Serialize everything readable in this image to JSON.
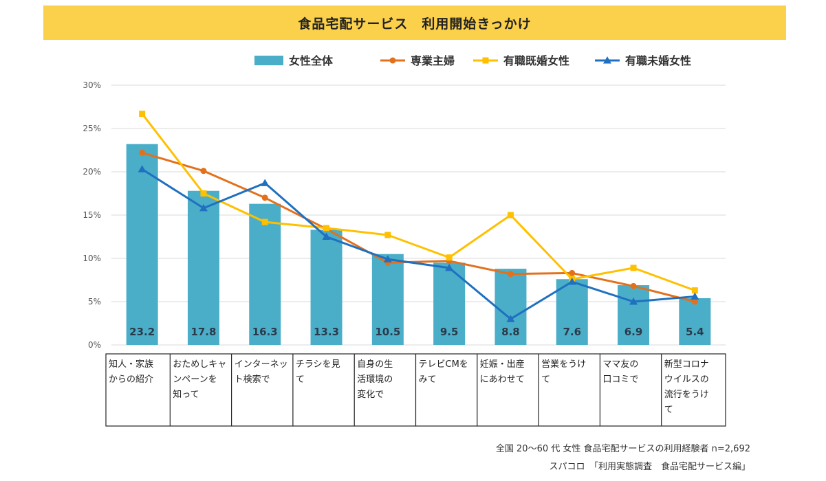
{
  "title": "食品宅配サービス　利用開始きっかけ",
  "footer": {
    "line1": "全国 20～60 代 女性 食品宅配サービスの利用経験者 n=2,692",
    "line2": "スパコロ　「利用実態調査　食品宅配サービス編」"
  },
  "chart_data": {
    "type": "bar",
    "y_ticks": [
      "0%",
      "5%",
      "10%",
      "15%",
      "20%",
      "25%",
      "30%"
    ],
    "ylim": [
      0,
      30
    ],
    "grid": true,
    "legend_position": "top-right",
    "categories": [
      [
        "知人・家族",
        "からの紹介"
      ],
      [
        "おためしキャ",
        "ンペーンを",
        "知って"
      ],
      [
        "インターネッ",
        "ト検索で"
      ],
      [
        "チラシを見",
        "て"
      ],
      [
        "自身の生",
        "活環境の",
        "変化で"
      ],
      [
        "テレビCMを",
        "みて"
      ],
      [
        "妊娠・出産",
        "にあわせて"
      ],
      [
        "営業をうけ",
        "て"
      ],
      [
        "ママ友の",
        "口コミで"
      ],
      [
        "新型コロナ",
        "ウイルスの",
        "流行をうけ",
        "て"
      ]
    ],
    "series": [
      {
        "name": "女性全体",
        "type": "bar",
        "color": "#4aaec8",
        "values": [
          23.2,
          17.8,
          16.3,
          13.3,
          10.5,
          9.5,
          8.8,
          7.6,
          6.9,
          5.4
        ],
        "labels": [
          "23.2",
          "17.8",
          "16.3",
          "13.3",
          "10.5",
          "9.5",
          "8.8",
          "7.6",
          "6.9",
          "5.4"
        ]
      },
      {
        "name": "専業主婦",
        "type": "line",
        "marker": "circle",
        "color": "#e2711d",
        "values": [
          22.2,
          20.1,
          17.0,
          13.4,
          9.5,
          9.7,
          8.2,
          8.3,
          6.8,
          5.0
        ]
      },
      {
        "name": "有職既婚女性",
        "type": "line",
        "marker": "square",
        "color": "#ffc000",
        "values": [
          26.7,
          17.5,
          14.2,
          13.5,
          12.7,
          10.1,
          15.0,
          7.6,
          8.9,
          6.3
        ]
      },
      {
        "name": "有職未婚女性",
        "type": "line",
        "marker": "triangle",
        "color": "#1f70c1",
        "values": [
          20.3,
          15.8,
          18.7,
          12.5,
          9.9,
          8.9,
          3.0,
          7.3,
          5.0,
          5.6
        ]
      }
    ]
  }
}
